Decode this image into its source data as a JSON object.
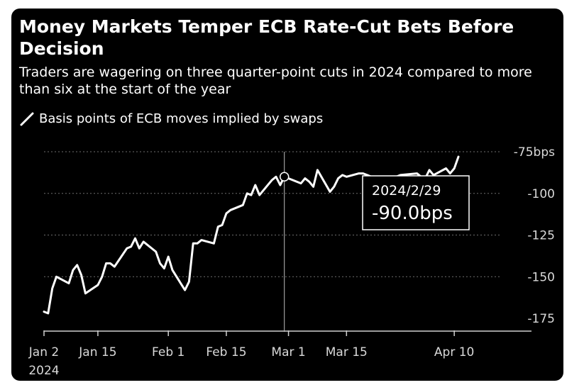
{
  "title": "Money Markets Temper ECB Rate-Cut Bets Before Decision",
  "subtitle": "Traders are wagering on three quarter-point cuts in 2024 compared to more than six at the start of the year",
  "legend": {
    "label": "Basis points of ECB moves implied by swaps",
    "color": "#ffffff"
  },
  "colors": {
    "background": "#000000",
    "line": "#ffffff",
    "grid": "#6e6e6e",
    "crosshair": "#bfbfbf"
  },
  "tooltip": {
    "date": "2024/2/29",
    "value": "-90.0bps"
  },
  "chart_data": {
    "type": "line",
    "series": [
      {
        "values": [
          [
            "2024-01-02",
            -171
          ],
          [
            "2024-01-03",
            -172
          ],
          [
            "2024-01-04",
            -157
          ],
          [
            "2024-01-05",
            -150
          ],
          [
            "2024-01-08",
            -154
          ],
          [
            "2024-01-09",
            -146
          ],
          [
            "2024-01-10",
            -143
          ],
          [
            "2024-01-11",
            -149
          ],
          [
            "2024-01-12",
            -160
          ],
          [
            "2024-01-15",
            -155
          ],
          [
            "2024-01-16",
            -150
          ],
          [
            "2024-01-17",
            -142
          ],
          [
            "2024-01-18",
            -142
          ],
          [
            "2024-01-19",
            -144
          ],
          [
            "2024-01-22",
            -133
          ],
          [
            "2024-01-23",
            -132
          ],
          [
            "2024-01-24",
            -127
          ],
          [
            "2024-01-25",
            -133
          ],
          [
            "2024-01-26",
            -129
          ],
          [
            "2024-01-29",
            -135
          ],
          [
            "2024-01-30",
            -142
          ],
          [
            "2024-01-31",
            -145
          ],
          [
            "2024-02-01",
            -138
          ],
          [
            "2024-02-02",
            -146
          ],
          [
            "2024-02-05",
            -158
          ],
          [
            "2024-02-06",
            -153
          ],
          [
            "2024-02-07",
            -130
          ],
          [
            "2024-02-08",
            -130
          ],
          [
            "2024-02-09",
            -128
          ],
          [
            "2024-02-12",
            -130
          ],
          [
            "2024-02-13",
            -120
          ],
          [
            "2024-02-14",
            -119
          ],
          [
            "2024-02-15",
            -112
          ],
          [
            "2024-02-16",
            -110
          ],
          [
            "2024-02-19",
            -107
          ],
          [
            "2024-02-20",
            -100
          ],
          [
            "2024-02-21",
            -101
          ],
          [
            "2024-02-22",
            -95
          ],
          [
            "2024-02-23",
            -101
          ],
          [
            "2024-02-26",
            -92
          ],
          [
            "2024-02-27",
            -90
          ],
          [
            "2024-02-28",
            -95
          ],
          [
            "2024-02-29",
            -90
          ],
          [
            "2024-03-01",
            -91
          ],
          [
            "2024-03-04",
            -94
          ],
          [
            "2024-03-05",
            -91
          ],
          [
            "2024-03-06",
            -93
          ],
          [
            "2024-03-07",
            -96
          ],
          [
            "2024-03-08",
            -86
          ],
          [
            "2024-03-11",
            -99
          ],
          [
            "2024-03-12",
            -96
          ],
          [
            "2024-03-13",
            -91
          ],
          [
            "2024-03-14",
            -89
          ],
          [
            "2024-03-15",
            -90
          ],
          [
            "2024-03-18",
            -88
          ],
          [
            "2024-03-19",
            -88
          ],
          [
            "2024-03-20",
            -89
          ],
          [
            "2024-03-21",
            -90
          ],
          [
            "2024-03-22",
            -93
          ],
          [
            "2024-03-25",
            -92
          ],
          [
            "2024-03-26",
            -91
          ],
          [
            "2024-03-27",
            -90
          ],
          [
            "2024-03-28",
            -89
          ],
          [
            "2024-04-01",
            -88
          ],
          [
            "2024-04-02",
            -90
          ],
          [
            "2024-04-03",
            -91
          ],
          [
            "2024-04-04",
            -86
          ],
          [
            "2024-04-05",
            -89
          ],
          [
            "2024-04-08",
            -85
          ],
          [
            "2024-04-09",
            -88
          ],
          [
            "2024-04-10",
            -85
          ],
          [
            "2024-04-11",
            -78
          ]
        ]
      }
    ],
    "x_ticks": [
      {
        "date": "2024-01-02",
        "label": "Jan 2",
        "sublabel": "2024"
      },
      {
        "date": "2024-01-15",
        "label": "Jan 15"
      },
      {
        "date": "2024-02-01",
        "label": "Feb 1"
      },
      {
        "date": "2024-02-15",
        "label": "Feb 15"
      },
      {
        "date": "2024-03-01",
        "label": "Mar 1"
      },
      {
        "date": "2024-03-15",
        "label": "Mar 15"
      },
      {
        "date": "2024-04-10",
        "label": "Apr 10"
      }
    ],
    "y_ticks": [
      {
        "value": -75,
        "label": "-75bps"
      },
      {
        "value": -100,
        "label": "-100"
      },
      {
        "value": -125,
        "label": "-125"
      },
      {
        "value": -150,
        "label": "-150"
      },
      {
        "value": -175,
        "label": "-175"
      }
    ],
    "ylim": [
      -175,
      -75
    ],
    "xlim": [
      "2024-01-02",
      "2024-04-11"
    ],
    "grid": true,
    "highlight": {
      "date": "2024-02-29",
      "value": -90
    }
  }
}
